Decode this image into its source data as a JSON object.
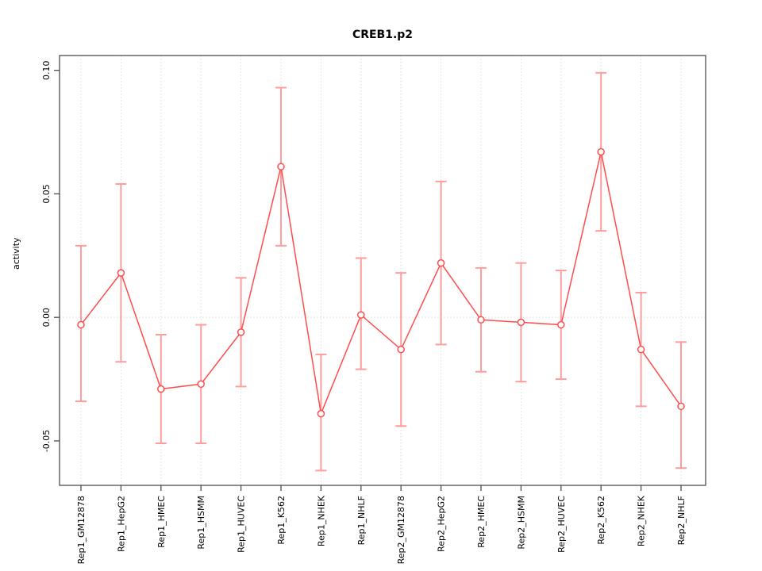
{
  "title": "CREB1.p2",
  "chart_data": {
    "type": "line",
    "title": "CREB1.p2",
    "xlabel": "",
    "ylabel": "activity",
    "legend_position": "none",
    "grid": "vertical dotted gridline at every category; horizontal dotted line at y=0",
    "marker": "open-circle",
    "error_bars": true,
    "categories": [
      "Rep1_GM12878",
      "Rep1_HepG2",
      "Rep1_HMEC",
      "Rep1_HSMM",
      "Rep1_HUVEC",
      "Rep1_K562",
      "Rep1_NHEK",
      "Rep1_NHLF",
      "Rep2_GM12878",
      "Rep2_HepG2",
      "Rep2_HMEC",
      "Rep2_HSMM",
      "Rep2_HUVEC",
      "Rep2_K562",
      "Rep2_NHEK",
      "Rep2_NHLF"
    ],
    "series": [
      {
        "name": "activity",
        "values": [
          -0.003,
          0.018,
          -0.029,
          -0.027,
          -0.006,
          0.061,
          -0.039,
          0.001,
          -0.013,
          0.022,
          -0.001,
          -0.002,
          -0.003,
          0.067,
          -0.013,
          -0.036
        ],
        "ci_lower": [
          -0.034,
          -0.018,
          -0.051,
          -0.051,
          -0.028,
          0.029,
          -0.062,
          -0.021,
          -0.044,
          -0.011,
          -0.022,
          -0.026,
          -0.025,
          0.035,
          -0.036,
          -0.061
        ],
        "ci_upper": [
          0.029,
          0.054,
          -0.007,
          -0.003,
          0.016,
          0.093,
          -0.015,
          0.024,
          0.018,
          0.055,
          0.02,
          0.022,
          0.019,
          0.099,
          0.01,
          -0.01
        ]
      }
    ],
    "ylim": [
      -0.068,
      0.106
    ],
    "yticks": [
      -0.05,
      0.0,
      0.05,
      0.1
    ],
    "ytick_labels": [
      "-0.05",
      "0.00",
      "0.05",
      "0.10"
    ],
    "colors": {
      "point_line": "#ff4d4d",
      "error_bar": "#ff9c9c",
      "gridline": "#dcdcdc",
      "zero_line": "#dcdcdc",
      "box": "#4d4d4d",
      "tick": "#4d4d4d",
      "label_text": "#000000"
    }
  }
}
